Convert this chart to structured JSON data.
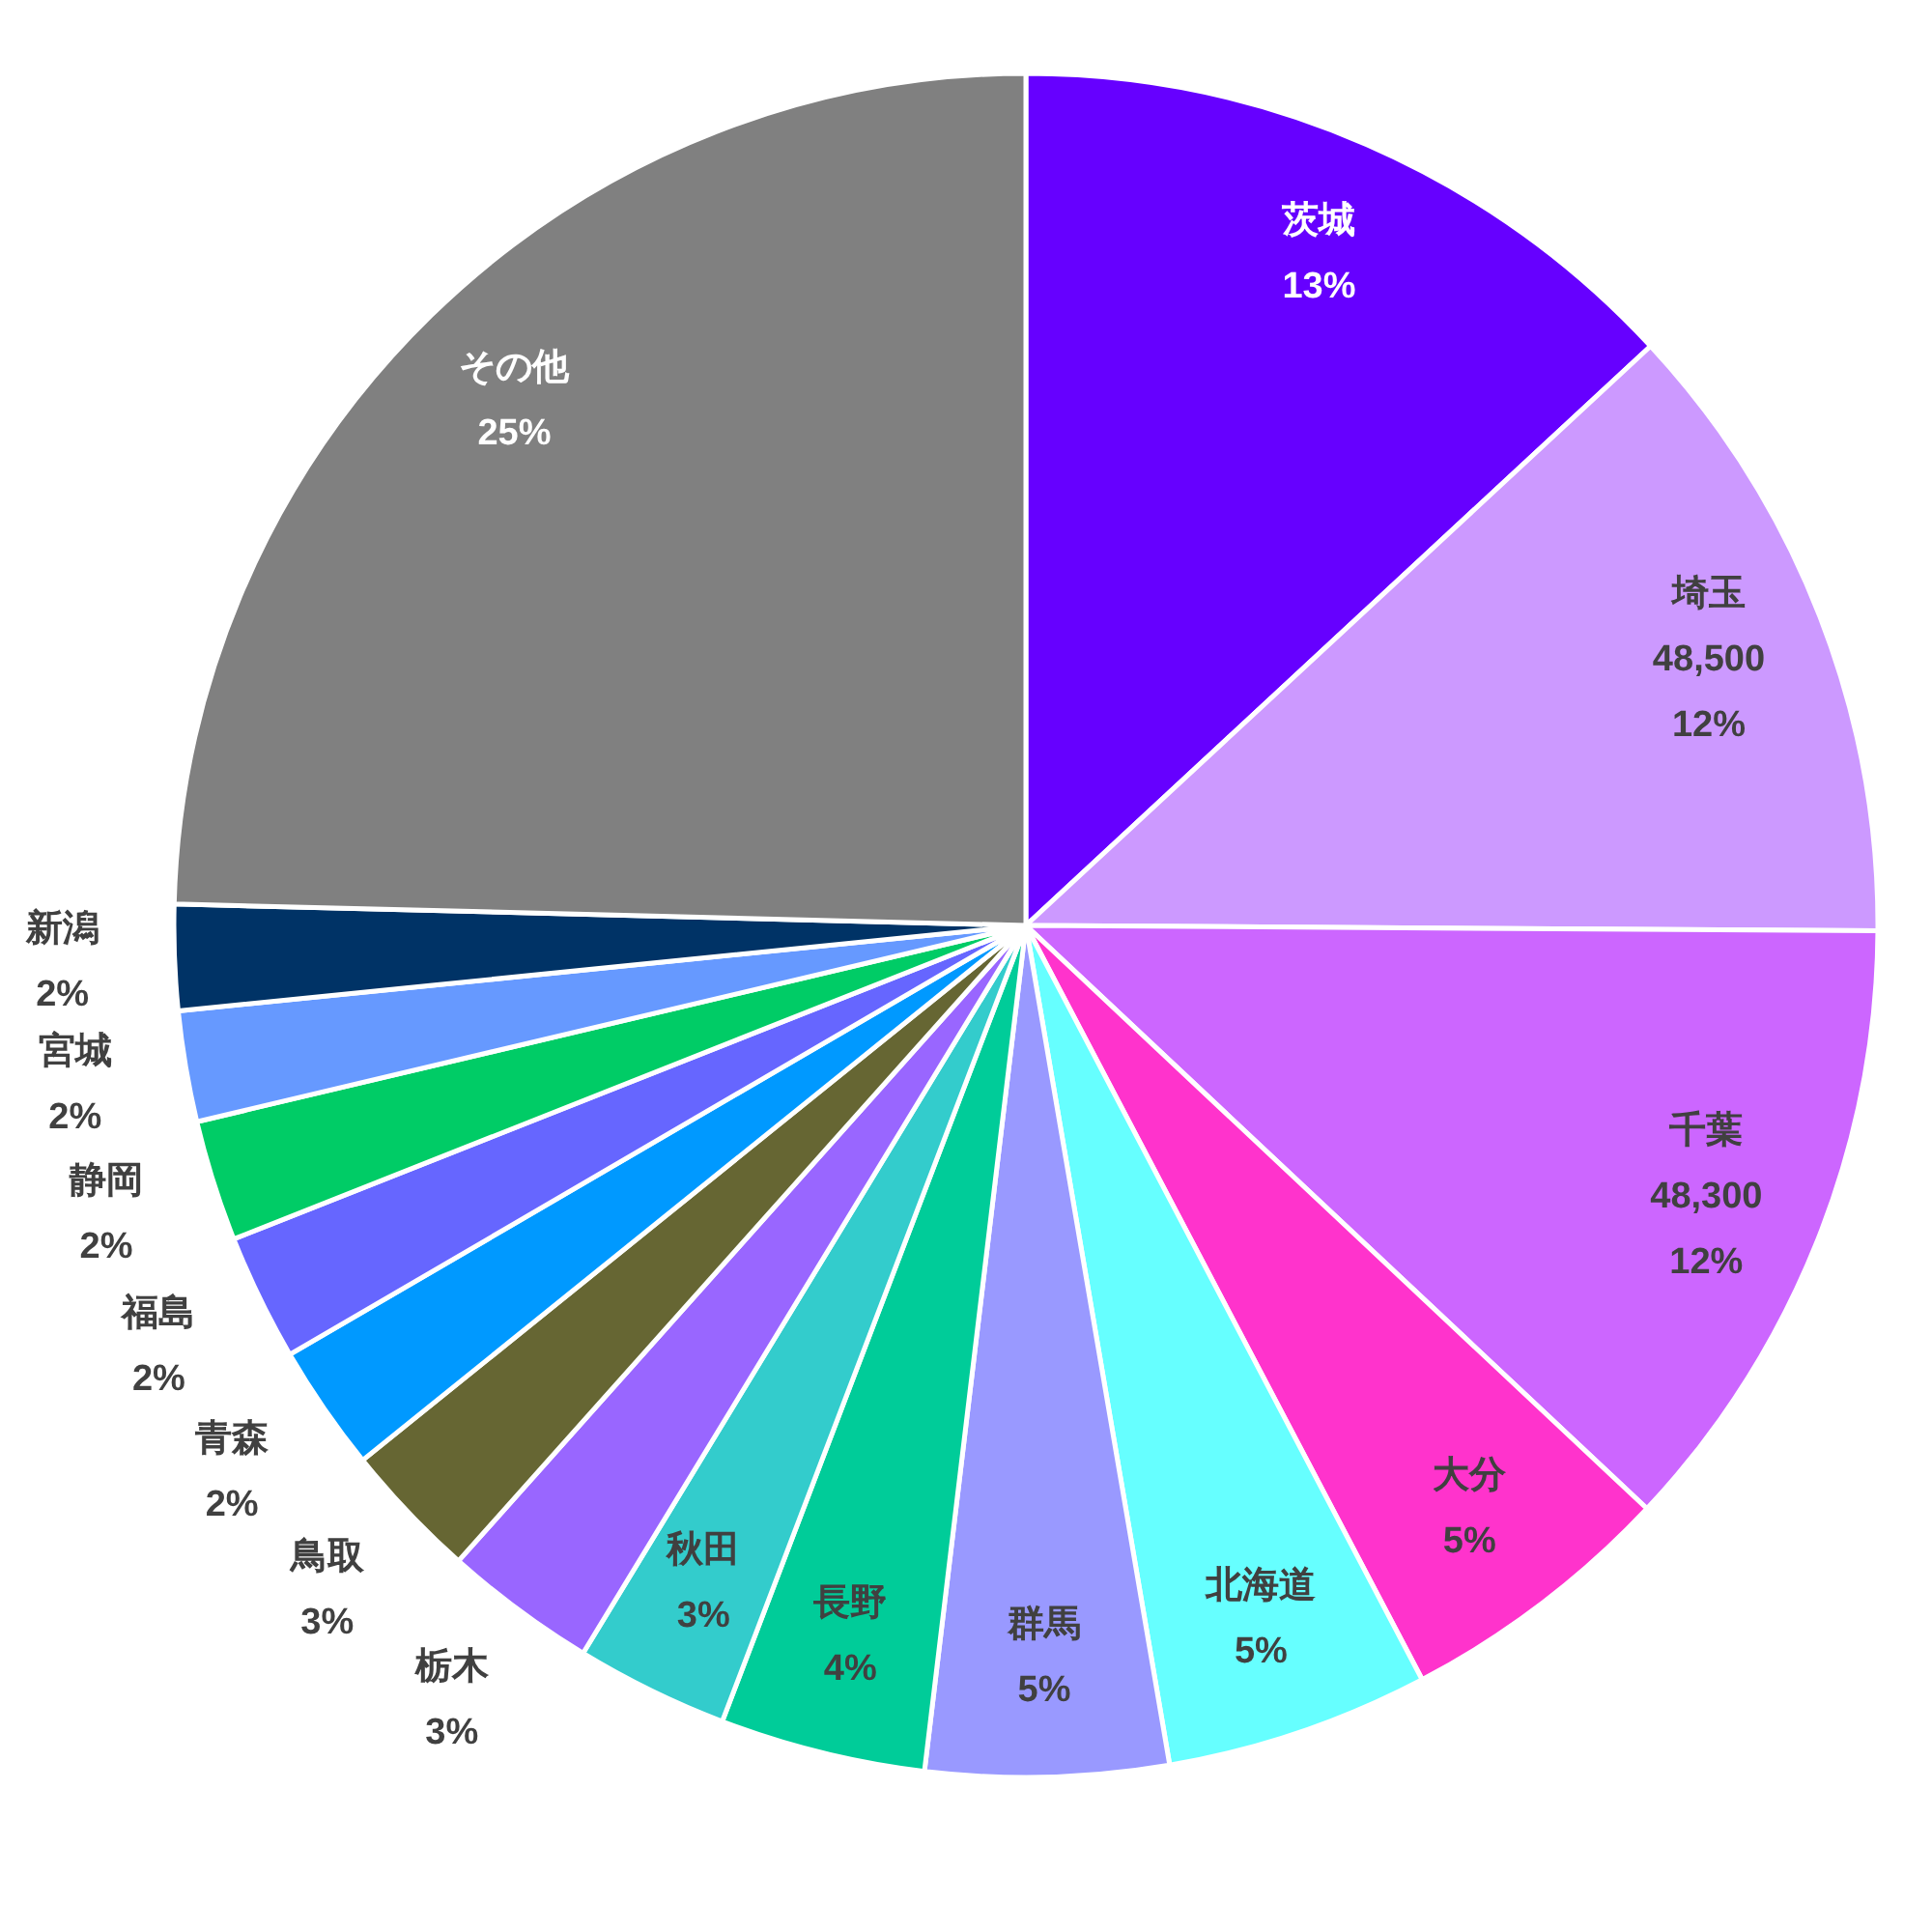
{
  "chart_data": {
    "type": "pie",
    "categories": [
      "茨城",
      "埼玉",
      "千葉",
      "大分",
      "北海道",
      "群馬",
      "長野",
      "秋田",
      "栃木",
      "鳥取",
      "青森",
      "福島",
      "静岡",
      "宮城",
      "新潟",
      "その他"
    ],
    "values": [
      13.1,
      12.0,
      11.9,
      5.3,
      5.0,
      4.6,
      3.9,
      2.9,
      2.9,
      2.6,
      2.4,
      2.4,
      2.3,
      2.1,
      2.0,
      24.6
    ],
    "colors": [
      "#6600ff",
      "#cc99ff",
      "#cc66ff",
      "#ff33cc",
      "#66ffff",
      "#9999ff",
      "#00cc99",
      "#33cccc",
      "#9966ff",
      "#666633",
      "#0099ff",
      "#6666ff",
      "#00cc66",
      "#6699ff",
      "#003366",
      "#808080"
    ],
    "value_labels": [
      "13%",
      "48,500\n12%",
      "48,300\n12%",
      "5%",
      "5%",
      "5%",
      "4%",
      "3%",
      "3%",
      "3%",
      "2%",
      "2%",
      "2%",
      "2%",
      "2%",
      "25%"
    ]
  }
}
